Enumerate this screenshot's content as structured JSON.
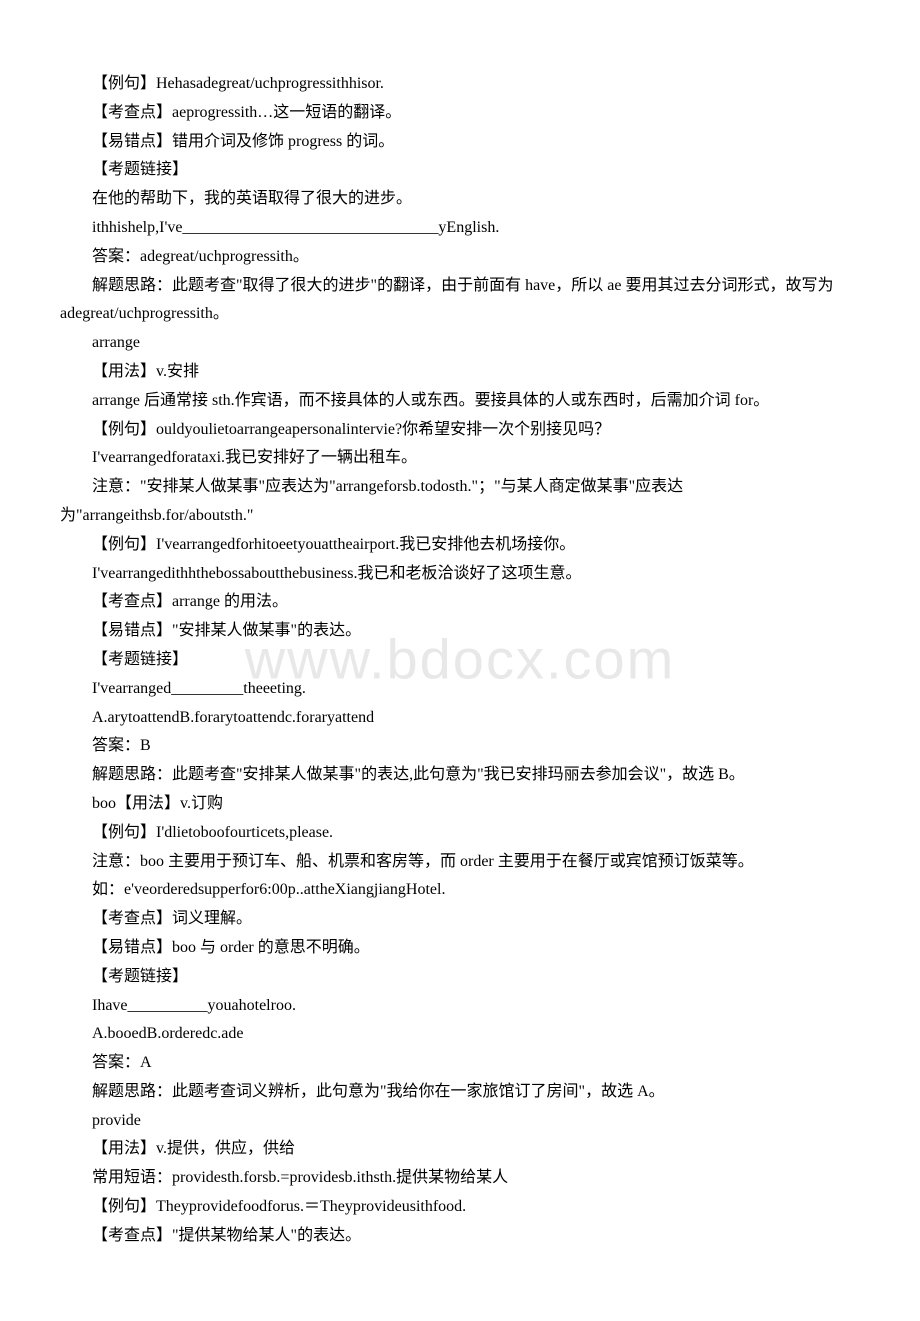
{
  "watermark": "www.bdocx.com",
  "lines": [
    "【例句】Hehasadegreat/uchprogressithhisor.",
    "【考查点】aeprogressith…这一短语的翻译。",
    "【易错点】错用介词及修饰 progress 的词。",
    "【考题链接】",
    "在他的帮助下，我的英语取得了很大的进步。",
    "ithhishelp,I've________________________________yEnglish.",
    "答案：adegreat/uchprogressith。"
  ],
  "para1": "解题思路：此题考查\"取得了很大的进步\"的翻译，由于前面有 have，所以 ae 要用其过去分词形式，故写为 adegreat/uchprogressith。",
  "lines2": [
    "arrange",
    "【用法】v.安排"
  ],
  "para2": "arrange 后通常接 sth.作宾语，而不接具体的人或东西。要接具体的人或东西时，后需加介词 for。",
  "lines3": [
    "【例句】ouldyoulietoarrangeapersonalintervie?你希望安排一次个别接见吗？",
    "I'vearrangedforataxi.我已安排好了一辆出租车。"
  ],
  "para3": "注意：\"安排某人做某事\"应表达为\"arrangeforsb.todosth.\"；\"与某人商定做某事\"应表达为\"arrangeithsb.for/aboutsth.\"",
  "lines4": [
    "【例句】I'vearrangedforhitoeetyouattheairport.我已安排他去机场接你。",
    "I'vearrangedithhthebossaboutthebusiness.我已和老板洽谈好了这项生意。",
    "【考查点】arrange 的用法。",
    "【易错点】\"安排某人做某事\"的表达。",
    "【考题链接】",
    "I'vearranged_________theeeting.",
    "A.arytoattendB.forarytoattendc.foraryattend",
    "答案：B"
  ],
  "para4": "解题思路：此题考查\"安排某人做某事\"的表达,此句意为\"我已安排玛丽去参加会议\"，故选 B。",
  "lines5": [
    "boo【用法】v.订购",
    "【例句】I'dlietoboofourticets,please."
  ],
  "para5": "注意：boo 主要用于预订车、船、机票和客房等，而 order 主要用于在餐厅或宾馆预订饭菜等。",
  "lines6": [
    "如：e'veorderedsupperfor6:00p..attheXiangjiangHotel.",
    "【考查点】词义理解。",
    "【易错点】boo 与 order 的意思不明确。",
    "【考题链接】",
    "Ihave__________youahotelroo.",
    "A.booedB.orderedc.ade",
    "答案：A"
  ],
  "para6": "解题思路：此题考查词义辨析，此句意为\"我给你在一家旅馆订了房间\"，故选 A。",
  "lines7": [
    "provide",
    "【用法】v.提供，供应，供给",
    "常用短语：providesth.forsb.=providesb.ithsth.提供某物给某人",
    "【例句】Theyprovidefoodforus.＝Theyprovideusithfood.",
    "【考查点】\"提供某物给某人\"的表达。"
  ]
}
